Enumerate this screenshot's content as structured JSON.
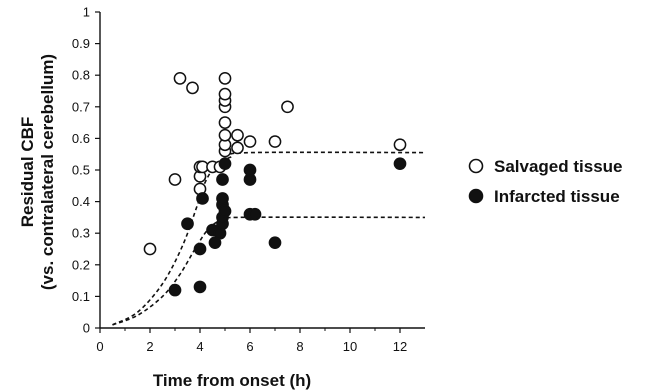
{
  "chart_data": {
    "type": "scatter",
    "xlabel": "Time from onset (h)",
    "ylabel": "Residual CBF",
    "ylabel_sub": "(vs. contralateral cerebellum)",
    "xlim": [
      0,
      13
    ],
    "ylim": [
      0,
      1
    ],
    "x_ticks": [
      {
        "value": 0,
        "label": "0"
      },
      {
        "value": 2,
        "label": "2"
      },
      {
        "value": 4,
        "label": "4"
      },
      {
        "value": 6,
        "label": "6"
      },
      {
        "value": 8,
        "label": "8"
      },
      {
        "value": 10,
        "label": "10"
      },
      {
        "value": 12,
        "label": "12"
      }
    ],
    "y_ticks": [
      {
        "value": 0,
        "label": "0"
      },
      {
        "value": 0.1,
        "label": "0.1"
      },
      {
        "value": 0.2,
        "label": "0.2"
      },
      {
        "value": 0.3,
        "label": "0.3"
      },
      {
        "value": 0.4,
        "label": "0.4"
      },
      {
        "value": 0.5,
        "label": "0.5"
      },
      {
        "value": 0.6,
        "label": "0.6"
      },
      {
        "value": 0.7,
        "label": "0.7"
      },
      {
        "value": 0.8,
        "label": "0.8"
      },
      {
        "value": 0.9,
        "label": "0.9"
      },
      {
        "value": 1,
        "label": "1"
      }
    ],
    "grid": false,
    "legend_position": "right",
    "series": [
      {
        "name": "Salvaged tissue",
        "marker": "open-circle",
        "points": [
          [
            2.0,
            0.25
          ],
          [
            3.0,
            0.47
          ],
          [
            3.2,
            0.79
          ],
          [
            3.7,
            0.76
          ],
          [
            4.0,
            0.44
          ],
          [
            4.0,
            0.48
          ],
          [
            4.0,
            0.51
          ],
          [
            4.1,
            0.51
          ],
          [
            4.5,
            0.51
          ],
          [
            4.8,
            0.51
          ],
          [
            5.0,
            0.56
          ],
          [
            5.0,
            0.58
          ],
          [
            5.0,
            0.61
          ],
          [
            5.0,
            0.65
          ],
          [
            5.0,
            0.7
          ],
          [
            5.0,
            0.72
          ],
          [
            5.0,
            0.74
          ],
          [
            5.0,
            0.79
          ],
          [
            5.5,
            0.57
          ],
          [
            5.5,
            0.61
          ],
          [
            6.0,
            0.59
          ],
          [
            7.0,
            0.59
          ],
          [
            7.5,
            0.7
          ],
          [
            12.0,
            0.58
          ]
        ]
      },
      {
        "name": "Infarcted tissue",
        "marker": "filled-circle",
        "points": [
          [
            3.0,
            0.12
          ],
          [
            3.5,
            0.33
          ],
          [
            4.0,
            0.13
          ],
          [
            4.0,
            0.25
          ],
          [
            4.1,
            0.41
          ],
          [
            4.5,
            0.31
          ],
          [
            4.6,
            0.27
          ],
          [
            4.8,
            0.3
          ],
          [
            4.9,
            0.33
          ],
          [
            4.9,
            0.35
          ],
          [
            4.9,
            0.39
          ],
          [
            4.9,
            0.41
          ],
          [
            4.9,
            0.47
          ],
          [
            5.0,
            0.37
          ],
          [
            5.0,
            0.52
          ],
          [
            6.0,
            0.36
          ],
          [
            6.0,
            0.47
          ],
          [
            6.0,
            0.5
          ],
          [
            6.2,
            0.36
          ],
          [
            7.0,
            0.27
          ],
          [
            12.0,
            0.52
          ]
        ]
      }
    ],
    "trend_curves": [
      {
        "series": "Salvaged tissue",
        "style": "dashed",
        "points": [
          [
            0.5,
            0.01
          ],
          [
            1.5,
            0.05
          ],
          [
            2.5,
            0.14
          ],
          [
            3.3,
            0.26
          ],
          [
            3.9,
            0.39
          ],
          [
            4.2,
            0.46
          ],
          [
            4.6,
            0.51
          ],
          [
            5.2,
            0.54
          ],
          [
            6,
            0.555
          ],
          [
            13,
            0.555
          ]
        ]
      },
      {
        "series": "Infarcted tissue",
        "style": "dashed",
        "points": [
          [
            0.5,
            0.01
          ],
          [
            1.5,
            0.04
          ],
          [
            2.5,
            0.1
          ],
          [
            3.2,
            0.17
          ],
          [
            3.8,
            0.25
          ],
          [
            4.3,
            0.31
          ],
          [
            4.8,
            0.34
          ],
          [
            5.5,
            0.35
          ],
          [
            13,
            0.35
          ]
        ]
      }
    ]
  }
}
